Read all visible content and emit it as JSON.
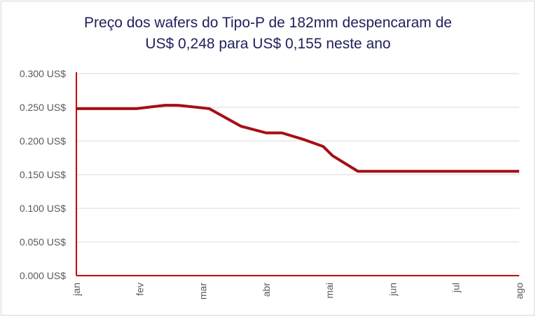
{
  "chart_data": {
    "type": "line",
    "title_lines": [
      "Preço dos wafers do Tipo-P de 182mm despencaram de",
      "US$ 0,248 para US$ 0,155 neste ano"
    ],
    "xlabel": "",
    "ylabel": "",
    "categories": [
      "jan",
      "fev",
      "mar",
      "abr",
      "mai",
      "jun",
      "jul",
      "ago"
    ],
    "y_ticks": [
      "0.000 US$",
      "0.050 US$",
      "0.100 US$",
      "0.150 US$",
      "0.200 US$",
      "0.250 US$",
      "0.300 US$"
    ],
    "ylim": [
      0,
      0.3
    ],
    "y_tick_values": [
      0,
      0.05,
      0.1,
      0.15,
      0.2,
      0.25,
      0.3
    ],
    "grid": true,
    "series": [
      {
        "color": "#a50f15",
        "x": [
          0,
          0.5,
          0.95,
          1.4,
          1.6,
          2.1,
          2.6,
          3.0,
          3.25,
          3.6,
          3.9,
          4.05,
          4.45,
          5.0,
          6.0,
          7.0
        ],
        "values": [
          0.248,
          0.248,
          0.248,
          0.253,
          0.253,
          0.248,
          0.222,
          0.212,
          0.212,
          0.202,
          0.192,
          0.178,
          0.155,
          0.155,
          0.155,
          0.155
        ]
      }
    ]
  }
}
